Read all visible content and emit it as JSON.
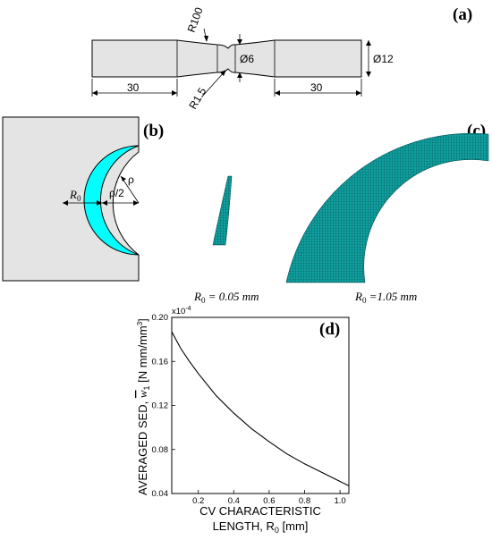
{
  "panels": {
    "a": {
      "label": "(a)",
      "dims": {
        "r_large": "R100",
        "d_neck": "Ø6",
        "d_shank": "Ø12",
        "r_notch": "R1.5",
        "len_left": "30",
        "len_right": "30"
      }
    },
    "b": {
      "label": "(b)",
      "r0": "R",
      "r0_sub": "0",
      "rho": "ρ",
      "rho_half": "ρ/2"
    },
    "c": {
      "label": "(c)",
      "left_caption": {
        "main": "R",
        "sub": "0",
        "rest": " = 0.05 mm"
      },
      "right_caption": {
        "main": "R",
        "sub": "0",
        "rest": " =1.05 mm"
      }
    },
    "d": {
      "label": "(d)"
    }
  },
  "colors": {
    "cyan": "#00ffff",
    "mesh": "#0a8c8c",
    "gray_fill": "#e4e4e4"
  },
  "chart_data": {
    "type": "line",
    "title": "",
    "xlabel_line1": "CV CHARACTERISTIC",
    "xlabel_line2": "LENGTH, R",
    "xlabel_sub": "0",
    "xlabel_unit": " [mm]",
    "ylabel": "AVERAGED SED,",
    "ylabel_sym": "w",
    "ylabel_sub": "1",
    "ylabel_unit": "[N mm/mm",
    "ylabel_sup": "3",
    "ylabel_end": "]",
    "y_multiplier": "x10",
    "y_multiplier_exp": "-4",
    "xlim": [
      0.05,
      1.05
    ],
    "ylim": [
      0.04,
      0.2
    ],
    "xticks": [
      0.2,
      0.4,
      0.6,
      0.8,
      1.0
    ],
    "xtick_labels": [
      "0.2",
      "0.4",
      "0.6",
      "0.8",
      "1.0"
    ],
    "yticks": [
      0.04,
      0.08,
      0.12,
      0.16,
      0.2
    ],
    "ytick_labels": [
      "0.04",
      "0.08",
      "0.12",
      "0.16",
      "0.20"
    ],
    "series": [
      {
        "x": [
          0.05,
          0.1,
          0.15,
          0.2,
          0.3,
          0.4,
          0.5,
          0.6,
          0.7,
          0.8,
          0.9,
          1.0,
          1.05
        ],
        "y": [
          0.187,
          0.172,
          0.16,
          0.149,
          0.129,
          0.113,
          0.099,
          0.087,
          0.076,
          0.067,
          0.059,
          0.051,
          0.047
        ]
      }
    ]
  }
}
